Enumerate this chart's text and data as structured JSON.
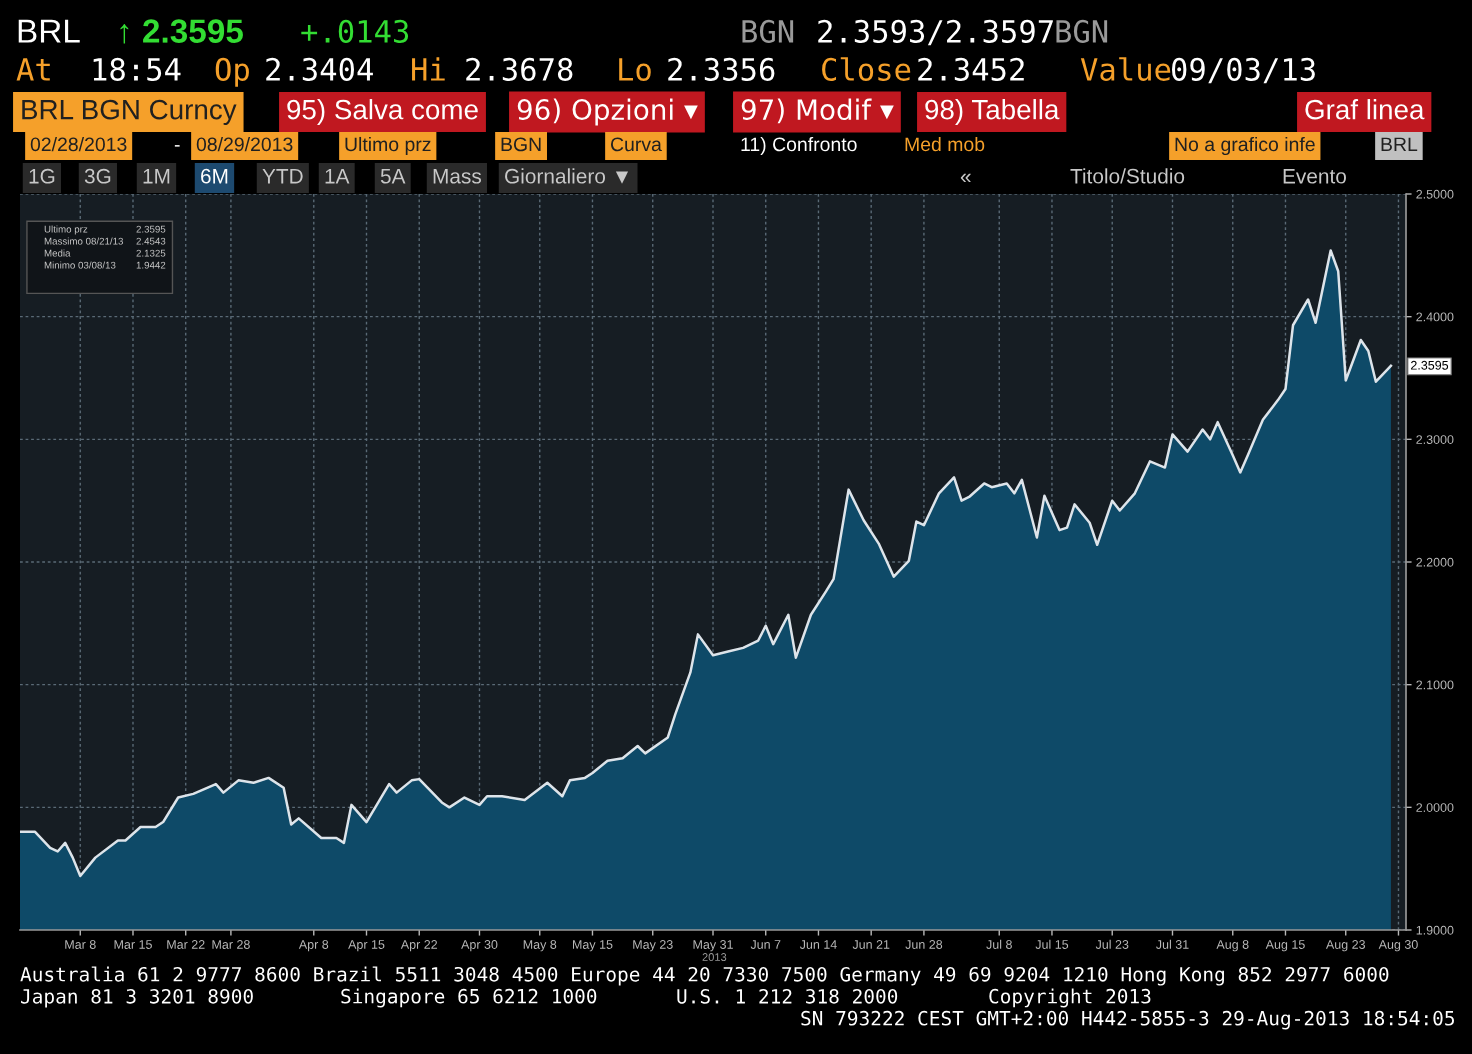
{
  "chart_data": {
    "type": "area",
    "x": [
      "2013-02-28",
      "2013-03-02",
      "2013-03-04",
      "2013-03-05",
      "2013-03-06",
      "2013-03-07",
      "2013-03-08",
      "2013-03-10",
      "2013-03-13",
      "2013-03-14",
      "2013-03-16",
      "2013-03-18",
      "2013-03-19",
      "2013-03-21",
      "2013-03-23",
      "2013-03-26",
      "2013-03-27",
      "2013-03-29",
      "2013-03-31",
      "2013-04-02",
      "2013-04-04",
      "2013-04-05",
      "2013-04-06",
      "2013-04-09",
      "2013-04-11",
      "2013-04-12",
      "2013-04-13",
      "2013-04-15",
      "2013-04-18",
      "2013-04-19",
      "2013-04-21",
      "2013-04-22",
      "2013-04-25",
      "2013-04-26",
      "2013-04-28",
      "2013-04-30",
      "2013-05-01",
      "2013-05-03",
      "2013-05-06",
      "2013-05-09",
      "2013-05-11",
      "2013-05-12",
      "2013-05-14",
      "2013-05-15",
      "2013-05-17",
      "2013-05-19",
      "2013-05-21",
      "2013-05-22",
      "2013-05-25",
      "2013-05-26",
      "2013-05-28",
      "2013-05-29",
      "2013-05-31",
      "2013-06-02",
      "2013-06-04",
      "2013-06-06",
      "2013-06-07",
      "2013-06-08",
      "2013-06-10",
      "2013-06-11",
      "2013-06-13",
      "2013-06-15",
      "2013-06-16",
      "2013-06-18",
      "2013-06-20",
      "2013-06-22",
      "2013-06-24",
      "2013-06-26",
      "2013-06-27",
      "2013-06-28",
      "2013-06-30",
      "2013-07-02",
      "2013-07-03",
      "2013-07-04",
      "2013-07-06",
      "2013-07-07",
      "2013-07-09",
      "2013-07-10",
      "2013-07-11",
      "2013-07-13",
      "2013-07-14",
      "2013-07-16",
      "2013-07-17",
      "2013-07-18",
      "2013-07-20",
      "2013-07-21",
      "2013-07-23",
      "2013-07-24",
      "2013-07-26",
      "2013-07-28",
      "2013-07-30",
      "2013-07-31",
      "2013-08-02",
      "2013-08-04",
      "2013-08-05",
      "2013-08-06",
      "2013-08-08",
      "2013-08-09",
      "2013-08-10",
      "2013-08-12",
      "2013-08-14",
      "2013-08-15",
      "2013-08-16",
      "2013-08-18",
      "2013-08-19",
      "2013-08-21",
      "2013-08-22",
      "2013-08-23",
      "2013-08-25",
      "2013-08-26",
      "2013-08-27",
      "2013-08-29"
    ],
    "series": [
      {
        "color": "#0e4a68",
        "values": [
          1.98,
          1.98,
          1.967,
          1.964,
          1.971,
          1.959,
          1.944,
          1.959,
          1.973,
          1.973,
          1.984,
          1.984,
          1.988,
          2.008,
          2.011,
          2.019,
          2.012,
          2.022,
          2.02,
          2.024,
          2.016,
          1.986,
          1.991,
          1.975,
          1.975,
          1.971,
          2.002,
          1.988,
          2.019,
          2.012,
          2.022,
          2.023,
          2.004,
          2.0,
          2.008,
          2.002,
          2.009,
          2.009,
          2.006,
          2.02,
          2.009,
          2.022,
          2.024,
          2.028,
          2.038,
          2.04,
          2.05,
          2.044,
          2.057,
          2.076,
          2.11,
          2.141,
          2.124,
          2.127,
          2.13,
          2.136,
          2.148,
          2.133,
          2.157,
          2.122,
          2.157,
          2.176,
          2.186,
          2.259,
          2.234,
          2.215,
          2.188,
          2.201,
          2.233,
          2.23,
          2.256,
          2.269,
          2.25,
          2.253,
          2.264,
          2.261,
          2.264,
          2.256,
          2.267,
          2.22,
          2.254,
          2.226,
          2.228,
          2.247,
          2.232,
          2.214,
          2.25,
          2.242,
          2.256,
          2.282,
          2.277,
          2.304,
          2.29,
          2.308,
          2.3,
          2.314,
          2.287,
          2.273,
          2.287,
          2.316,
          2.332,
          2.341,
          2.393,
          2.414,
          2.395,
          2.454,
          2.437,
          2.348,
          2.381,
          2.372,
          2.347,
          2.36
        ]
      }
    ],
    "xlim": [
      "2013-02-28",
      "2013-08-31"
    ],
    "xticks": [
      {
        "value": "2013-03-08",
        "label": "Mar 8"
      },
      {
        "value": "2013-03-15",
        "label": "Mar 15"
      },
      {
        "value": "2013-03-22",
        "label": "Mar 22"
      },
      {
        "value": "2013-03-28",
        "label": "Mar 28"
      },
      {
        "value": "2013-04-08",
        "label": "Apr 8"
      },
      {
        "value": "2013-04-15",
        "label": "Apr 15"
      },
      {
        "value": "2013-04-22",
        "label": "Apr 22"
      },
      {
        "value": "2013-04-30",
        "label": "Apr 30"
      },
      {
        "value": "2013-05-08",
        "label": "May 8"
      },
      {
        "value": "2013-05-15",
        "label": "May 15"
      },
      {
        "value": "2013-05-23",
        "label": "May 23"
      },
      {
        "value": "2013-05-31",
        "label": "May 31"
      },
      {
        "value": "2013-06-07",
        "label": "Jun 7"
      },
      {
        "value": "2013-06-14",
        "label": "Jun 14"
      },
      {
        "value": "2013-06-21",
        "label": "Jun 21"
      },
      {
        "value": "2013-06-28",
        "label": "Jun 28"
      },
      {
        "value": "2013-07-08",
        "label": "Jul 8"
      },
      {
        "value": "2013-07-15",
        "label": "Jul 15"
      },
      {
        "value": "2013-07-23",
        "label": "Jul 23"
      },
      {
        "value": "2013-07-31",
        "label": "Jul 31"
      },
      {
        "value": "2013-08-08",
        "label": "Aug 8"
      },
      {
        "value": "2013-08-15",
        "label": "Aug 15"
      },
      {
        "value": "2013-08-23",
        "label": "Aug 23"
      },
      {
        "value": "2013-08-30",
        "label": "Aug 30"
      }
    ],
    "ylim": [
      1.9,
      2.5
    ],
    "yticks": [
      {
        "value": 1.9,
        "label": "1.9000"
      },
      {
        "value": 2.0,
        "label": "2.0000"
      },
      {
        "value": 2.1,
        "label": "2.1000"
      },
      {
        "value": 2.2,
        "label": "2.2000"
      },
      {
        "value": 2.3,
        "label": "2.3000"
      },
      {
        "value": 2.4,
        "label": "2.4000"
      },
      {
        "value": 2.5,
        "label": "2.5000"
      }
    ],
    "grid": true,
    "annotations": [
      "BRL",
      "↑ 2.3595",
      "+.0143",
      "BGN",
      "2.3593/2.3597",
      "BGN",
      "At",
      "18:54",
      "Op",
      "2.3404",
      "Hi",
      "2.3678",
      "Lo",
      "2.3356",
      "Close",
      "2.3452",
      "Value",
      "09/03/13",
      "BRL BGN Curncy",
      "95) Salva come",
      "96) Opzioni ▾",
      "97) Modif ▾",
      "98) Tabella",
      "Graf linea",
      "02/28/2013",
      "-",
      "08/29/2013",
      "Ultimo prz",
      "BGN",
      "Curva",
      "11) Confronto",
      "Med mob",
      "No a grafico infe",
      "BRL",
      "1G",
      "3G",
      "1M",
      "6M",
      "YTD",
      "1A",
      "5A",
      "Mass",
      "Giornaliero ▼",
      "«",
      "Titolo/Studio",
      "Evento",
      "Ultimo prz",
      "2.3595",
      "Massimo 08/21/13",
      "2.4543",
      "Media",
      "2.1325",
      "Minimo 03/08/13",
      "1.9442",
      "2013",
      "Australia 61 2 9777 8600 Brazil 5511 3048 4500 Europe 44 20 7330 7500 Germany 49 69 9204 1210 Hong Kong 852 2977 6000",
      "Japan 81 3 3201 8900",
      "Singapore 65 6212 1000",
      "U.S. 1 212 318 2000",
      "Copyright 2013",
      "SN 793222 CEST GMT+2:00 H442-5855-3 29-Aug-2013 18:54:05",
      {
        "text": "2.3595",
        "x": "2013-08-29",
        "y": 2.3595
      }
    ]
  }
}
